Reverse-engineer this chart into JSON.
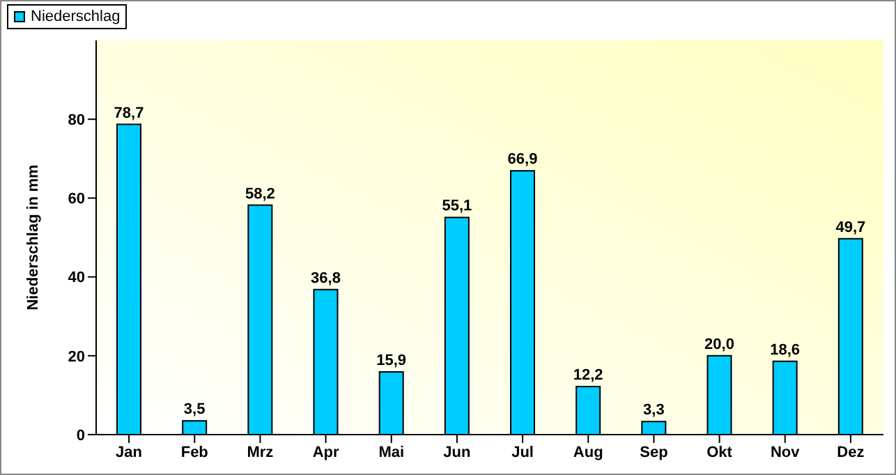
{
  "chart_data": {
    "type": "bar",
    "ylabel": "Niederschlag in mm",
    "categories": [
      "Jan",
      "Feb",
      "Mrz",
      "Apr",
      "Mai",
      "Jun",
      "Jul",
      "Aug",
      "Sep",
      "Okt",
      "Nov",
      "Dez"
    ],
    "series": [
      {
        "name": "Niederschlag",
        "color": "#00ccff",
        "values": [
          78.7,
          3.5,
          58.2,
          36.8,
          15.9,
          55.1,
          66.9,
          12.2,
          3.3,
          20.0,
          18.6,
          49.7
        ],
        "value_labels": [
          "78,7",
          "3,5",
          "58,2",
          "36,8",
          "15,9",
          "55,1",
          "66,9",
          "12,2",
          "3,3",
          "20,0",
          "18,6",
          "49,7"
        ]
      }
    ],
    "ylim": [
      0,
      100
    ],
    "yticks": [
      0,
      20,
      40,
      60,
      80
    ],
    "grid": false,
    "legend": "top left"
  }
}
